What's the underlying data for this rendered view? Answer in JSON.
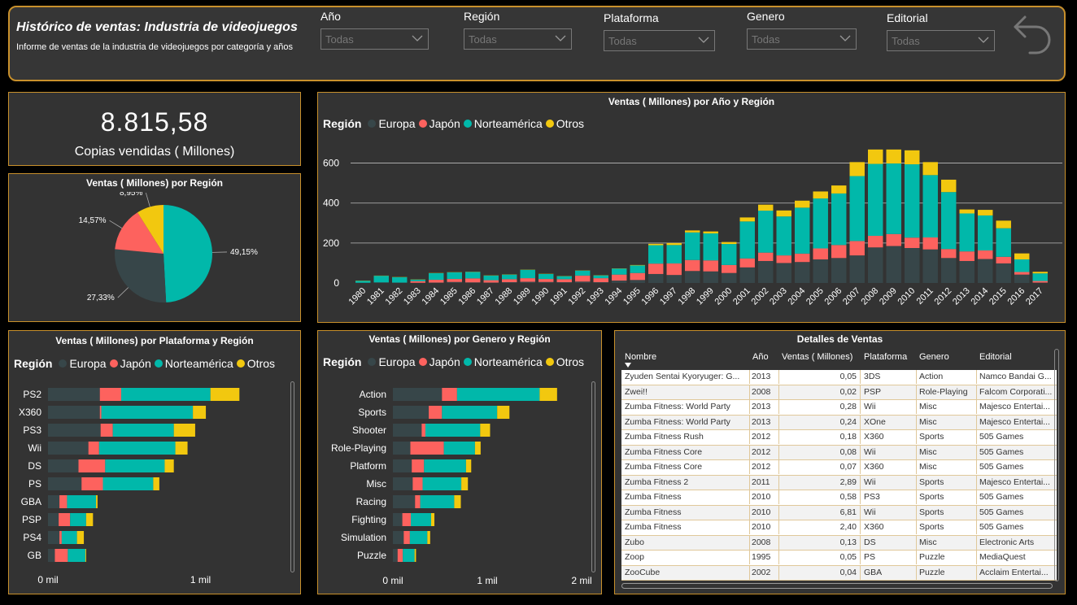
{
  "header": {
    "title": "Histórico de ventas: Industria de videojuegos",
    "subtitle": "Informe de ventas de la industria de videojuegos por categoría y años",
    "filters": [
      {
        "label": "Año",
        "value": "Todas"
      },
      {
        "label": "Región",
        "value": "Todas"
      },
      {
        "label": "Plataforma",
        "value": "Todas"
      },
      {
        "label": "Genero",
        "value": "Todas"
      },
      {
        "label": "Editorial",
        "value": "Todas"
      }
    ]
  },
  "kpi": {
    "value": "8.815,58",
    "label": "Copias vendidas ( Millones)"
  },
  "colors": {
    "europa": "#374649",
    "japon": "#fd625e",
    "norteamerica": "#01b8aa",
    "otros": "#f2c80f",
    "accent": "#c8902c"
  },
  "legend": {
    "title": "Región",
    "items": [
      {
        "name": "Europa",
        "color": "#374649"
      },
      {
        "name": "Japón",
        "color": "#fd625e"
      },
      {
        "name": "Norteamérica",
        "color": "#01b8aa"
      },
      {
        "name": "Otros",
        "color": "#f2c80f"
      }
    ]
  },
  "chart_data": [
    {
      "type": "pie",
      "title": "Ventas ( Millones) por Región",
      "slices": [
        {
          "name": "Norteamérica",
          "value": 49.15,
          "label": "49,15%",
          "color": "#01b8aa"
        },
        {
          "name": "Europa",
          "value": 27.33,
          "label": "27,33%",
          "color": "#374649"
        },
        {
          "name": "Japón",
          "value": 14.57,
          "label": "14,57%",
          "color": "#fd625e"
        },
        {
          "name": "Otros",
          "value": 8.95,
          "label": "8,95%",
          "color": "#f2c80f"
        }
      ]
    },
    {
      "type": "bar",
      "stacked": true,
      "title": "Ventas ( Millones) por Año y Región",
      "categories": [
        "1980",
        "1981",
        "1982",
        "1983",
        "1984",
        "1985",
        "1986",
        "1987",
        "1988",
        "1989",
        "1990",
        "1991",
        "1992",
        "1993",
        "1994",
        "1995",
        "1996",
        "1997",
        "1998",
        "1999",
        "2000",
        "2001",
        "2002",
        "2003",
        "2004",
        "2005",
        "2006",
        "2007",
        "2008",
        "2009",
        "2010",
        "2011",
        "2012",
        "2013",
        "2014",
        "2015",
        "2016",
        "2017"
      ],
      "series": [
        {
          "name": "Europa",
          "values": [
            1,
            3,
            2,
            1,
            2,
            5,
            3,
            2,
            4,
            6,
            5,
            4,
            7,
            4,
            12,
            15,
            45,
            40,
            60,
            58,
            50,
            78,
            110,
            100,
            105,
            118,
            125,
            138,
            178,
            185,
            175,
            168,
            125,
            110,
            120,
            98,
            42,
            2
          ]
        },
        {
          "name": "Japón",
          "values": [
            0,
            0,
            0,
            8,
            14,
            15,
            20,
            12,
            15,
            18,
            15,
            15,
            30,
            20,
            30,
            35,
            52,
            58,
            55,
            55,
            40,
            45,
            42,
            38,
            42,
            55,
            65,
            72,
            58,
            60,
            52,
            60,
            45,
            48,
            43,
            33,
            13,
            8
          ]
        },
        {
          "name": "Norteamérica",
          "values": [
            10,
            33,
            27,
            8,
            33,
            33,
            32,
            23,
            23,
            42,
            25,
            15,
            25,
            14,
            30,
            38,
            92,
            92,
            138,
            135,
            105,
            185,
            210,
            195,
            230,
            250,
            258,
            325,
            360,
            353,
            367,
            312,
            285,
            190,
            175,
            143,
            63,
            38
          ]
        },
        {
          "name": "Otros",
          "values": [
            1,
            1,
            1,
            1,
            1,
            1,
            1,
            1,
            1,
            1,
            1,
            1,
            1,
            1,
            1,
            2,
            7,
            10,
            10,
            10,
            10,
            20,
            30,
            30,
            35,
            35,
            40,
            70,
            72,
            70,
            70,
            65,
            62,
            20,
            28,
            38,
            30,
            8
          ]
        }
      ],
      "ylim": [
        0,
        700
      ],
      "yticks": [
        "0",
        "200",
        "400",
        "600"
      ]
    },
    {
      "type": "bar",
      "orientation": "horizontal",
      "stacked": true,
      "title": "Ventas ( Millones) por Plataforma y Región",
      "categories": [
        "PS2",
        "X360",
        "PS3",
        "Wii",
        "DS",
        "PS",
        "GBA",
        "PSP",
        "PS4",
        "GB"
      ],
      "series": [
        {
          "name": "Europa",
          "values": [
            340,
            340,
            345,
            265,
            200,
            220,
            75,
            70,
            75,
            45
          ]
        },
        {
          "name": "Japón",
          "values": [
            140,
            10,
            80,
            70,
            175,
            140,
            50,
            75,
            15,
            85
          ]
        },
        {
          "name": "Norteamérica",
          "values": [
            585,
            600,
            400,
            500,
            390,
            330,
            190,
            105,
            100,
            115
          ]
        },
        {
          "name": "Otros",
          "values": [
            190,
            85,
            140,
            80,
            60,
            40,
            10,
            45,
            45,
            5
          ]
        }
      ],
      "xticks": [
        "0 mil",
        "1 mil"
      ],
      "xlim": [
        0,
        1600
      ]
    },
    {
      "type": "bar",
      "orientation": "horizontal",
      "stacked": true,
      "title": "Ventas ( Millones) por Genero y Región",
      "categories": [
        "Action",
        "Sports",
        "Shooter",
        "Role-Playing",
        "Platform",
        "Misc",
        "Racing",
        "Fighting",
        "Simulation",
        "Puzzle"
      ],
      "series": [
        {
          "name": "Europa",
          "values": [
            520,
            380,
            305,
            185,
            200,
            210,
            235,
            100,
            115,
            50
          ]
        },
        {
          "name": "Japón",
          "values": [
            160,
            140,
            40,
            355,
            130,
            105,
            55,
            90,
            65,
            55
          ]
        },
        {
          "name": "Norteamérica",
          "values": [
            875,
            585,
            580,
            330,
            445,
            410,
            360,
            215,
            185,
            125
          ]
        },
        {
          "name": "Otros",
          "values": [
            185,
            130,
            105,
            60,
            55,
            70,
            70,
            35,
            30,
            15
          ]
        }
      ],
      "xticks": [
        "0 mil",
        "1 mil",
        "2 mil"
      ],
      "xlim": [
        0,
        2000
      ]
    }
  ],
  "details": {
    "title": "Detalles de Ventas",
    "columns": [
      "Nombre",
      "Año",
      "Ventas ( Millones)",
      "Plataforma",
      "Genero",
      "Editorial"
    ],
    "rows": [
      [
        "Zyuden Sentai Kyoryuger: G...",
        "2013",
        "0,05",
        "3DS",
        "Action",
        "Namco Bandai G..."
      ],
      [
        "Zwei!!",
        "2008",
        "0,02",
        "PSP",
        "Role-Playing",
        "Falcom Corporati..."
      ],
      [
        "Zumba Fitness: World Party",
        "2013",
        "0,28",
        "Wii",
        "Misc",
        "Majesco Entertai..."
      ],
      [
        "Zumba Fitness: World Party",
        "2013",
        "0,24",
        "XOne",
        "Misc",
        "Majesco Entertai..."
      ],
      [
        "Zumba Fitness Rush",
        "2012",
        "0,18",
        "X360",
        "Sports",
        "505 Games"
      ],
      [
        "Zumba Fitness Core",
        "2012",
        "0,08",
        "Wii",
        "Misc",
        "505 Games"
      ],
      [
        "Zumba Fitness Core",
        "2012",
        "0,07",
        "X360",
        "Misc",
        "505 Games"
      ],
      [
        "Zumba Fitness 2",
        "2011",
        "2,89",
        "Wii",
        "Sports",
        "Majesco Entertai..."
      ],
      [
        "Zumba Fitness",
        "2010",
        "0,58",
        "PS3",
        "Sports",
        "505 Games"
      ],
      [
        "Zumba Fitness",
        "2010",
        "6,81",
        "Wii",
        "Sports",
        "505 Games"
      ],
      [
        "Zumba Fitness",
        "2010",
        "2,40",
        "X360",
        "Sports",
        "505 Games"
      ],
      [
        "Zubo",
        "2008",
        "0,13",
        "DS",
        "Misc",
        "Electronic Arts"
      ],
      [
        "Zoop",
        "1995",
        "0,05",
        "PS",
        "Puzzle",
        "MediaQuest"
      ],
      [
        "ZooCube",
        "2002",
        "0,04",
        "GBA",
        "Puzzle",
        "Acclaim Entertai..."
      ]
    ]
  }
}
